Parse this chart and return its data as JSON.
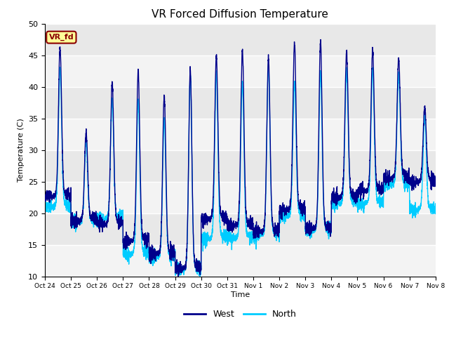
{
  "title": "VR Forced Diffusion Temperature",
  "ylabel": "Temperature (C)",
  "xlabel": "Time",
  "ylim": [
    10,
    50
  ],
  "bg_color": "#e8e8e8",
  "west_color": "#00008B",
  "north_color": "#00CCFF",
  "legend_label_west": "West",
  "legend_label_north": "North",
  "annotation_text": "VR_fd",
  "annotation_bg": "#FFFF99",
  "annotation_border": "#8B0000",
  "x_tick_labels": [
    "Oct 24",
    "Oct 25",
    "Oct 26",
    "Oct 27",
    "Oct 28",
    "Oct 29",
    "Oct 30",
    "Oct 31",
    "Nov 1",
    "Nov 2",
    "Nov 3",
    "Nov 4",
    "Nov 5",
    "Nov 6",
    "Nov 7",
    "Nov 8"
  ],
  "day_peaks_west": [
    45.8,
    32.5,
    40.3,
    42.0,
    38.2,
    42.2,
    44.5,
    45.6,
    44.3,
    46.5,
    47.0,
    45.2,
    45.5,
    44.2,
    36.5
  ],
  "day_mins_west": [
    22.5,
    18.8,
    18.3,
    15.5,
    13.5,
    11.3,
    19.0,
    18.0,
    17.0,
    20.5,
    17.5,
    22.5,
    23.5,
    25.5,
    25.0
  ],
  "day_peaks_north": [
    42.5,
    31.0,
    37.5,
    37.5,
    34.5,
    41.5,
    42.0,
    40.5,
    43.0,
    40.2,
    42.0,
    42.2,
    42.5,
    41.5,
    35.0
  ],
  "day_mins_north": [
    21.0,
    18.5,
    19.0,
    13.5,
    13.0,
    11.0,
    16.0,
    16.0,
    16.5,
    19.5,
    17.3,
    21.5,
    21.5,
    24.5,
    20.5
  ],
  "peak_sharpness": 4.0,
  "n_days": 15,
  "n_points_per_day": 288,
  "yticks": [
    10,
    15,
    20,
    25,
    30,
    35,
    40,
    45,
    50
  ]
}
